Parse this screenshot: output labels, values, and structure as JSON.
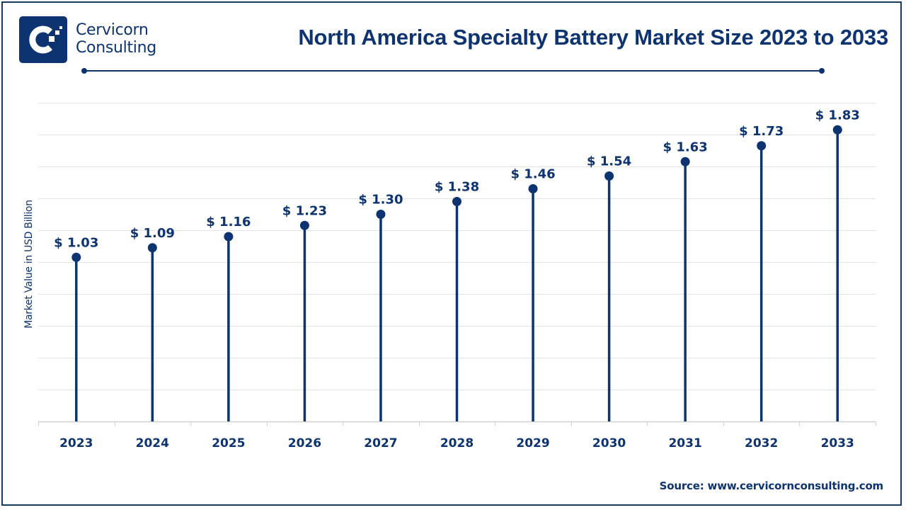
{
  "brand": {
    "line1": "Cervicorn",
    "line2": "Consulting",
    "logo_icon": "cervicorn-c-logo-icon"
  },
  "source": "Source: www.cervicornconsulting.com",
  "colors": {
    "primary": "#0d3470",
    "grid": "#e3e3e3",
    "axis": "#d0d0d0",
    "frame": "#163a5c"
  },
  "chart_data": {
    "type": "lollipop",
    "title": "North America Specialty Battery Market Size 2023 to 2033",
    "xlabel": "",
    "ylabel": "Market Value in USD Billion",
    "categories": [
      "2023",
      "2024",
      "2025",
      "2026",
      "2027",
      "2028",
      "2029",
      "2030",
      "2031",
      "2032",
      "2033"
    ],
    "values": [
      1.03,
      1.09,
      1.16,
      1.23,
      1.3,
      1.38,
      1.46,
      1.54,
      1.63,
      1.73,
      1.83
    ],
    "data_labels": [
      "$ 1.03",
      "$ 1.09",
      "$ 1.16",
      "$ 1.23",
      "$ 1.30",
      "$ 1.38",
      "$ 1.46",
      "$ 1.54",
      "$ 1.63",
      "$ 1.73",
      "$ 1.83"
    ],
    "ylim": [
      0,
      2.0
    ],
    "ytick_step": 0.2,
    "show_ytick_labels": false,
    "grid": true,
    "legend": "none"
  }
}
